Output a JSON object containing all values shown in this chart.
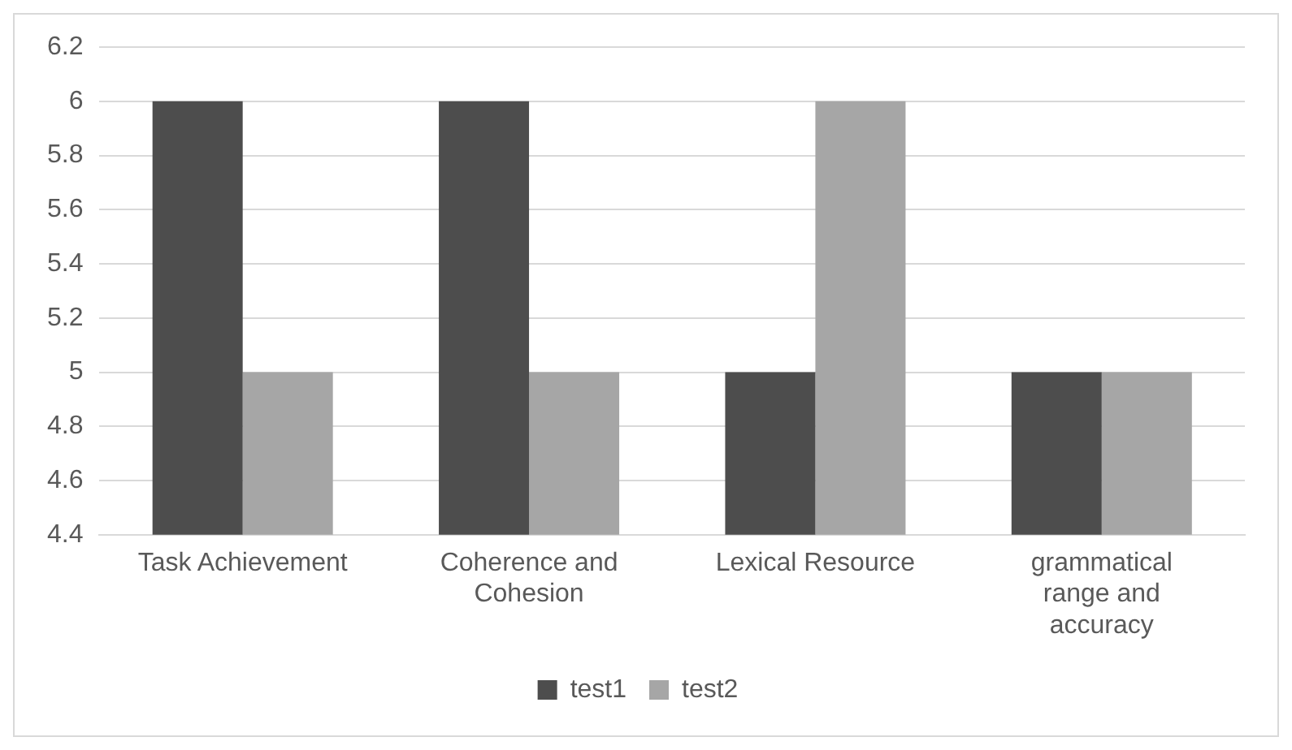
{
  "chart_data": {
    "type": "bar",
    "categories": [
      "Task Achievement",
      "Coherence and Cohesion",
      "Lexical Resource",
      "grammatical range and accuracy"
    ],
    "series": [
      {
        "name": "test1",
        "color": "#4d4d4d",
        "values": [
          6,
          6,
          5,
          5
        ]
      },
      {
        "name": "test2",
        "color": "#a6a6a6",
        "values": [
          5,
          5,
          6,
          5
        ]
      }
    ],
    "ylim": [
      4.4,
      6.2
    ],
    "yticks": [
      4.4,
      4.6,
      4.8,
      5,
      5.2,
      5.4,
      5.6,
      5.8,
      6,
      6.2
    ],
    "grid": "y",
    "legend": "bottom"
  }
}
